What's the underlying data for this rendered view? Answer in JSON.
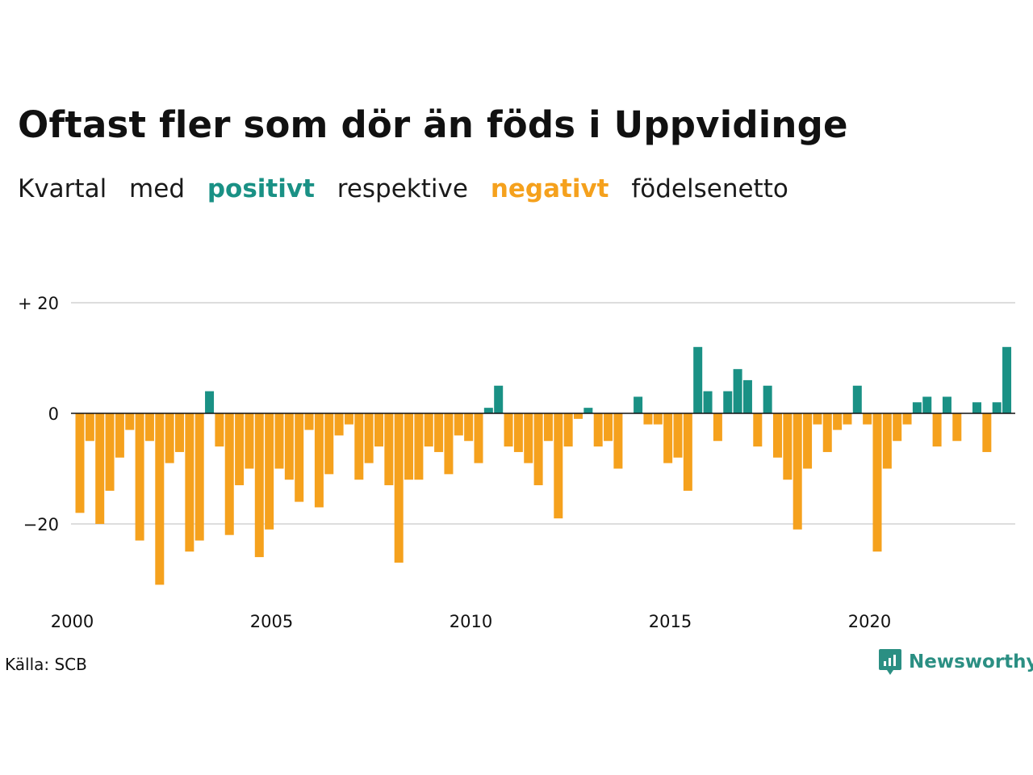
{
  "title": "Oftast fler som dör än föds i Uppvidinge",
  "subtitle": {
    "part1": "Kvartal",
    "part2": "med",
    "positive": "positivt",
    "part3": "respektive",
    "negative": "negativt",
    "part4": "födelsenetto"
  },
  "source": "Källa: SCB",
  "logo": {
    "text": "Newsworthy",
    "icon": "chart-badge-icon"
  },
  "colors": {
    "positive": "#1a9185",
    "negative": "#f5a11d",
    "gridline": "#dddddd",
    "zeroline": "#111111",
    "logo": "#2b8f83"
  },
  "chart_data": {
    "type": "bar",
    "x_start": "2000 Q1",
    "x_end": "2023 Q2",
    "x_tick_labels": [
      "2000",
      "2005",
      "2010",
      "2015",
      "2020"
    ],
    "y_tick_labels": [
      "+ 20",
      "0",
      "−20"
    ],
    "y_ticks": [
      20,
      0,
      -20
    ],
    "ylim": [
      -32,
      22
    ],
    "grid": true,
    "values": [
      -18,
      -5,
      -20,
      -14,
      -8,
      -3,
      -23,
      -5,
      -31,
      -9,
      -7,
      -25,
      -23,
      4,
      -6,
      -22,
      -13,
      -10,
      -26,
      -21,
      -10,
      -12,
      -16,
      -3,
      -17,
      -11,
      -4,
      -2,
      -12,
      -9,
      -6,
      -13,
      -27,
      -12,
      -12,
      -6,
      -7,
      -11,
      -4,
      -5,
      -9,
      1,
      5,
      -6,
      -7,
      -9,
      -13,
      -5,
      -19,
      -6,
      -1,
      1,
      -6,
      -5,
      -10,
      0,
      3,
      -2,
      -2,
      -9,
      -8,
      -14,
      12,
      4,
      -5,
      4,
      8,
      6,
      -6,
      5,
      -8,
      -12,
      -21,
      -10,
      -2,
      -7,
      -3,
      -2,
      5,
      -2,
      -25,
      -10,
      -5,
      -2,
      2,
      3,
      -6,
      3,
      -5,
      0,
      2,
      -7,
      2,
      12
    ]
  }
}
